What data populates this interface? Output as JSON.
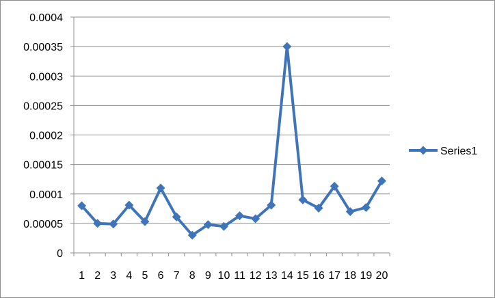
{
  "chart_data": {
    "type": "line",
    "categories": [
      "1",
      "2",
      "3",
      "4",
      "5",
      "6",
      "7",
      "8",
      "9",
      "10",
      "11",
      "12",
      "13",
      "14",
      "15",
      "16",
      "17",
      "18",
      "19",
      "20"
    ],
    "series": [
      {
        "name": "Series1",
        "values": [
          8e-05,
          5e-05,
          4.9e-05,
          8.1e-05,
          5.3e-05,
          0.00011,
          6.1e-05,
          3e-05,
          4.8e-05,
          4.5e-05,
          6.3e-05,
          5.8e-05,
          8.1e-05,
          0.00035,
          9e-05,
          7.6e-05,
          0.000113,
          7e-05,
          7.7e-05,
          0.000122
        ]
      }
    ],
    "ylim": [
      0,
      0.0004
    ],
    "yticks": [
      "0",
      "0.00005",
      "0.0001",
      "0.00015",
      "0.0002",
      "0.00025",
      "0.0003",
      "0.00035",
      "0.0004"
    ],
    "grid": "horizontal",
    "legend": "right",
    "color": "#3f75b8"
  }
}
